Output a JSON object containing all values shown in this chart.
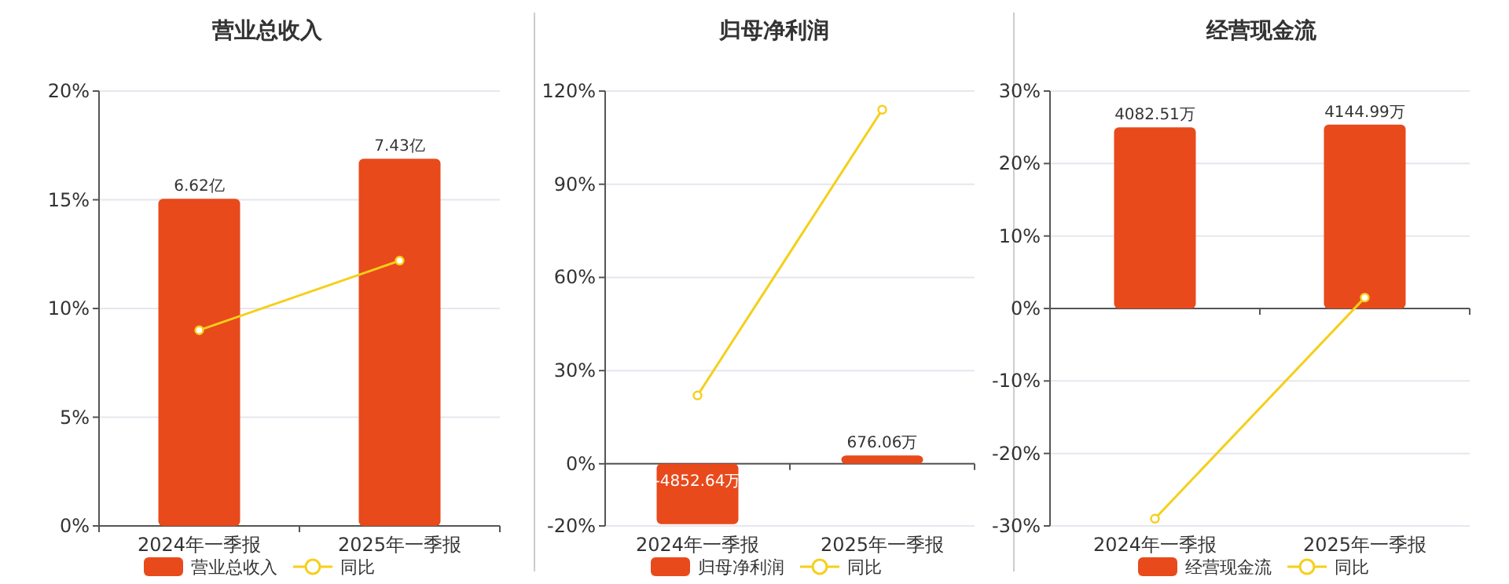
{
  "chart_data": [
    {
      "type": "bar",
      "title": "营业总收入",
      "categories": [
        "2024年一季报",
        "2025年一季报"
      ],
      "ylim": [
        0,
        20
      ],
      "yticks": [
        {
          "value": 0,
          "label": "0%"
        },
        {
          "value": 5,
          "label": "5%"
        },
        {
          "value": 10,
          "label": "10%"
        },
        {
          "value": 15,
          "label": "15%"
        },
        {
          "value": 20,
          "label": "20%"
        }
      ],
      "y2lim": [
        0,
        8.8
      ],
      "grid": "y",
      "legend": "bottom",
      "series": [
        {
          "name": "营业总收入",
          "axis": "y2",
          "color": "#e84a1c",
          "values": [
            6.62,
            7.43
          ],
          "value_labels": [
            "6.62亿",
            "7.43亿"
          ]
        },
        {
          "name": "同比",
          "type": "line",
          "color": "#f5cf1a",
          "marker": "circle",
          "values": [
            9.0,
            12.2
          ]
        }
      ]
    },
    {
      "type": "bar",
      "title": "归母净利润",
      "categories": [
        "2024年一季报",
        "2025年一季报"
      ],
      "ylim": [
        -20,
        120
      ],
      "yticks": [
        {
          "value": -20,
          "label": "-20%"
        },
        {
          "value": 0,
          "label": "0%"
        },
        {
          "value": 30,
          "label": "30%"
        },
        {
          "value": 60,
          "label": "60%"
        },
        {
          "value": 90,
          "label": "90%"
        },
        {
          "value": 120,
          "label": "120%"
        }
      ],
      "y2lim": [
        -5000,
        30000
      ],
      "grid": "y",
      "legend": "bottom",
      "series": [
        {
          "name": "归母净利润",
          "axis": "y2",
          "color": "#e84a1c",
          "values": [
            -4852.64,
            676.06
          ],
          "value_labels": [
            "-4852.64万",
            "676.06万"
          ]
        },
        {
          "name": "同比",
          "type": "line",
          "color": "#f5cf1a",
          "marker": "circle",
          "values": [
            22,
            114
          ]
        }
      ]
    },
    {
      "type": "bar",
      "title": "经营现金流",
      "categories": [
        "2024年一季报",
        "2025年一季报"
      ],
      "ylim": [
        -30,
        30
      ],
      "yticks": [
        {
          "value": -30,
          "label": "-30%"
        },
        {
          "value": -20,
          "label": "-20%"
        },
        {
          "value": -10,
          "label": "-10%"
        },
        {
          "value": 0,
          "label": "0%"
        },
        {
          "value": 10,
          "label": "10%"
        },
        {
          "value": 20,
          "label": "20%"
        },
        {
          "value": 30,
          "label": "30%"
        }
      ],
      "y2lim": [
        -4900,
        4900
      ],
      "grid": "y",
      "legend": "bottom",
      "series": [
        {
          "name": "经营现金流",
          "axis": "y2",
          "color": "#e84a1c",
          "values": [
            4082.51,
            4144.99
          ],
          "value_labels": [
            "4082.51万",
            "4144.99万"
          ]
        },
        {
          "name": "同比",
          "type": "line",
          "color": "#f5cf1a",
          "marker": "circle",
          "values": [
            -29,
            1.5
          ]
        }
      ]
    }
  ]
}
